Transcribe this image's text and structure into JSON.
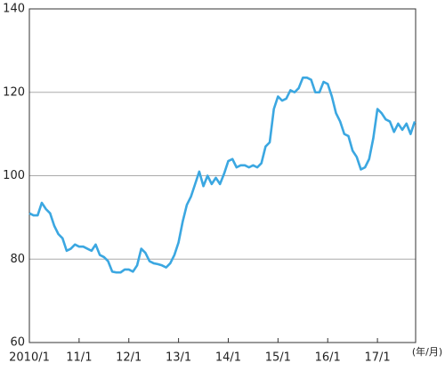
{
  "chart_data": {
    "type": "line",
    "x_label": "(年/月)",
    "categories": [
      "2010/1",
      null,
      null,
      null,
      null,
      null,
      null,
      null,
      null,
      null,
      null,
      null,
      "11/1",
      null,
      null,
      null,
      null,
      null,
      null,
      null,
      null,
      null,
      null,
      null,
      "12/1",
      null,
      null,
      null,
      null,
      null,
      null,
      null,
      null,
      null,
      null,
      null,
      "13/1",
      null,
      null,
      null,
      null,
      null,
      null,
      null,
      null,
      null,
      null,
      null,
      "14/1",
      null,
      null,
      null,
      null,
      null,
      null,
      null,
      null,
      null,
      null,
      null,
      "15/1",
      null,
      null,
      null,
      null,
      null,
      null,
      null,
      null,
      null,
      null,
      null,
      "16/1",
      null,
      null,
      null,
      null,
      null,
      null,
      null,
      null,
      null,
      null,
      null,
      "17/1",
      null,
      null,
      null,
      null,
      null,
      null,
      null,
      null,
      null
    ],
    "values": [
      91,
      90.5,
      90.5,
      93.5,
      92,
      91,
      88,
      86,
      85,
      82,
      82.5,
      83.5,
      83,
      83,
      82.5,
      82,
      83.5,
      81,
      80.5,
      79.5,
      77,
      76.8,
      76.8,
      77.5,
      77.5,
      77,
      78.5,
      82.5,
      81.5,
      79.5,
      79,
      78.8,
      78.5,
      78,
      79,
      81,
      84,
      89,
      93,
      95,
      98,
      101,
      97.5,
      100,
      98,
      99.5,
      98,
      100.5,
      103.5,
      104,
      102,
      102.5,
      102.5,
      102,
      102.5,
      102,
      103,
      107,
      108,
      116,
      119,
      118,
      118.5,
      120.5,
      120,
      121,
      123.5,
      123.5,
      123,
      120,
      120,
      122.5,
      122,
      119,
      115,
      113,
      110,
      109.5,
      106,
      104.5,
      101.5,
      102,
      104,
      109,
      116,
      115,
      113.5,
      113,
      110.5,
      112.5,
      111,
      112.5,
      110,
      113
    ],
    "color": "#3ba7e1",
    "ylim": [
      60,
      140
    ],
    "yticks": [
      60,
      80,
      100,
      120,
      140
    ],
    "grid": true
  }
}
